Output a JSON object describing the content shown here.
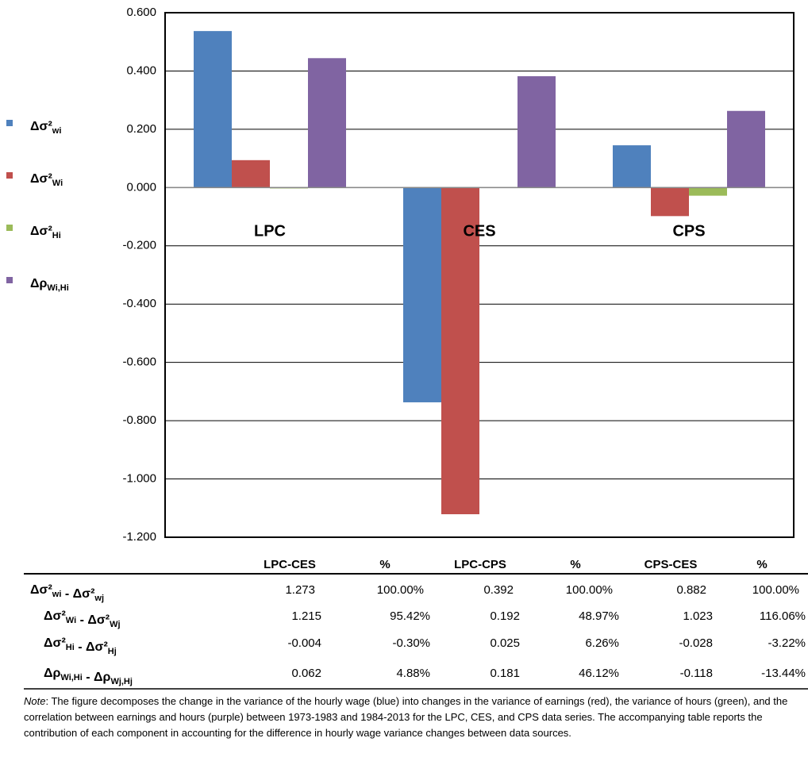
{
  "chart_data": {
    "type": "bar",
    "categories": [
      "LPC",
      "CES",
      "CPS"
    ],
    "series": [
      {
        "name": "Δσ²wi",
        "color": "#4f81bd",
        "values": [
          0.537,
          -0.737,
          0.145
        ]
      },
      {
        "name": "Δσ²Wi",
        "color": "#c0504d",
        "values": [
          0.094,
          -1.121,
          -0.098
        ]
      },
      {
        "name": "Δσ²Hi",
        "color": "#9bbb59",
        "values": [
          -0.003,
          0.001,
          -0.028
        ]
      },
      {
        "name": "ΔρWi,Hi",
        "color": "#8064a2",
        "values": [
          0.444,
          0.382,
          0.263
        ]
      }
    ],
    "ylim": [
      -1.2,
      0.6
    ],
    "yticks": [
      {
        "value": 0.6,
        "label": "0.600"
      },
      {
        "value": 0.4,
        "label": "0.400"
      },
      {
        "value": 0.2,
        "label": "0.200"
      },
      {
        "value": 0,
        "label": "0.000"
      },
      {
        "value": -0.2,
        "label": "-0.200"
      },
      {
        "value": -0.4,
        "label": "-0.400"
      },
      {
        "value": -0.6,
        "label": "-0.600"
      },
      {
        "value": -0.8,
        "label": "-0.800"
      },
      {
        "value": -1,
        "label": "-1.000"
      },
      {
        "value": -1.2,
        "label": "-1.200"
      }
    ],
    "grid": true,
    "legend": "left"
  },
  "table": {
    "header": [
      "LPC-CES",
      "%",
      "LPC-CPS",
      "%",
      "CPS-CES",
      "%"
    ],
    "rows": [
      [
        "Δσ²wi - Δσ²wj",
        "1.273",
        "100.00%",
        "0.392",
        "100.00%",
        "0.882",
        "100.00%"
      ],
      [
        "Δσ²Wi - Δσ²Wj",
        "1.215",
        "95.42%",
        "0.192",
        "48.97%",
        "1.023",
        "116.06%"
      ],
      [
        "Δσ²Hi - Δσ²Hj",
        "-0.004",
        "-0.30%",
        "0.025",
        "6.26%",
        "-0.028",
        "-3.22%"
      ],
      [
        "ΔρWi,Hi - ΔρWj,Hj",
        "0.062",
        "4.88%",
        "0.181",
        "46.12%",
        "-0.118",
        "-13.44%"
      ]
    ]
  },
  "note": {
    "label": "Note",
    "text": ":  The figure decomposes the change in the variance of the hourly wage (blue) into changes in the variance of earnings (red), the variance of hours (green), and the correlation between earnings and hours (purple) between 1973-1983 and 1984-2013 for the LPC, CES, and CPS data series. The accompanying table reports the contribution of each component in accounting for the difference in hourly wage variance changes between data sources."
  }
}
